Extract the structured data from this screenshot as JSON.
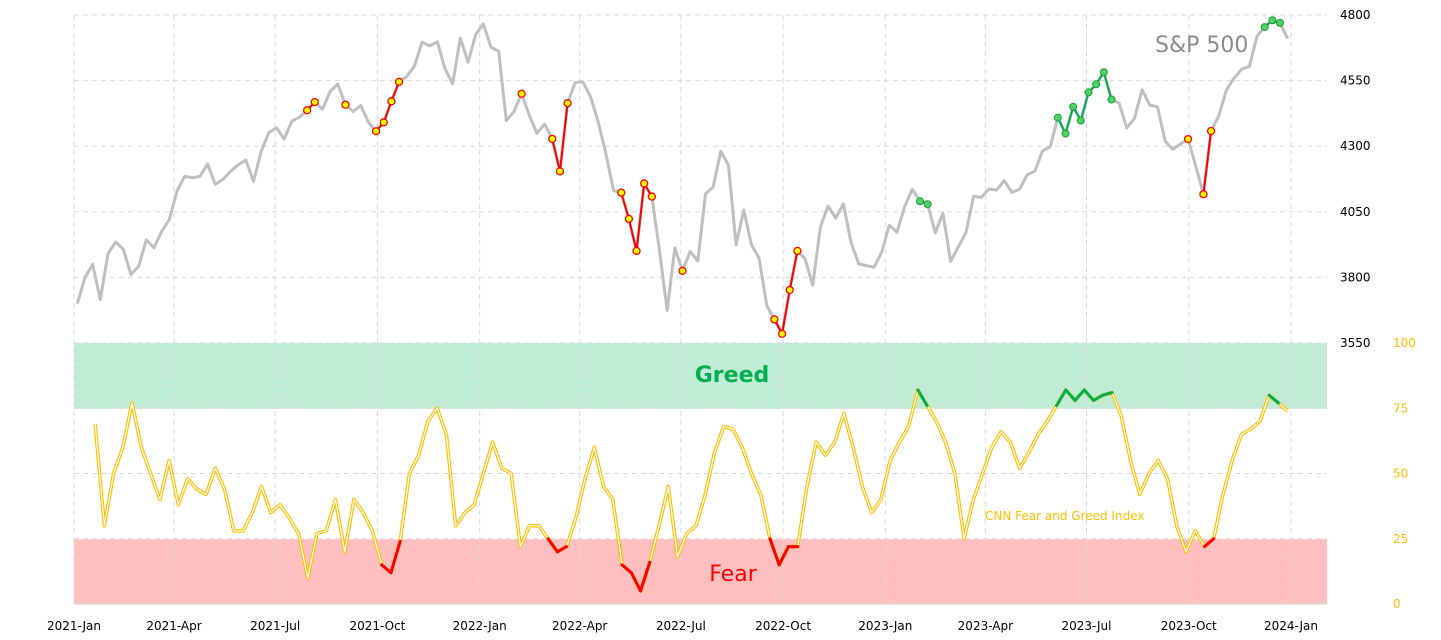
{
  "chart_data": {
    "type": "line",
    "title": "S&P 500",
    "index_label": "CNN Fear and Greed Index",
    "zones": {
      "greed_label": "Greed",
      "fear_label": "Fear",
      "greed_threshold": 75,
      "fear_threshold": 25
    },
    "x_ticks": [
      "2021-Jan",
      "2021-Apr",
      "2021-Jul",
      "2021-Oct",
      "2022-Jan",
      "2022-Apr",
      "2022-Jul",
      "2022-Oct",
      "2023-Jan",
      "2023-Apr",
      "2023-Jul",
      "2023-Oct",
      "2024-Jan"
    ],
    "x_tick_dates": [
      "2021-01-01",
      "2021-04-01",
      "2021-07-01",
      "2021-10-01",
      "2022-01-01",
      "2022-04-01",
      "2022-07-01",
      "2022-10-01",
      "2023-01-01",
      "2023-04-01",
      "2023-07-01",
      "2023-10-01",
      "2024-01-01"
    ],
    "x_range": [
      "2021-01-01",
      "2024-01-01"
    ],
    "sp500": {
      "ylim": [
        3550,
        4800
      ],
      "y_ticks": [
        "4800",
        "4550",
        "4300",
        "4050",
        "3800",
        "3550"
      ],
      "start": "2021-01-04",
      "end": "2023-12-29",
      "values": [
        3700,
        3800,
        3850,
        3715,
        3890,
        3935,
        3907,
        3811,
        3842,
        3943,
        3913,
        3975,
        4020,
        4128,
        4185,
        4180,
        4185,
        4232,
        4155,
        4173,
        4204,
        4229,
        4247,
        4166,
        4280,
        4352,
        4370,
        4327,
        4395,
        4411,
        4437,
        4468,
        4441,
        4509,
        4537,
        4458,
        4432,
        4455,
        4391,
        4357,
        4391,
        4471,
        4545,
        4566,
        4605,
        4697,
        4682,
        4698,
        4595,
        4538,
        4712,
        4620,
        4725,
        4766,
        4677,
        4662,
        4398,
        4432,
        4500,
        4418,
        4349,
        4384,
        4328,
        4204,
        4464,
        4543,
        4545,
        4488,
        4392,
        4272,
        4131,
        4123,
        4023,
        3901,
        4158,
        4108,
        3901,
        3674,
        3912,
        3825,
        3899,
        3863,
        4118,
        4145,
        4280,
        4228,
        3924,
        4057,
        3924,
        3873,
        3693,
        3640,
        3585,
        3752,
        3901,
        3871,
        3770,
        3992,
        4072,
        4026,
        4080,
        3934,
        3852,
        3845,
        3839,
        3895,
        3999,
        3972,
        4070,
        4136,
        4090,
        4079,
        3970,
        4045,
        3861,
        3916,
        3971,
        4109,
        4105,
        4137,
        4133,
        4169,
        4124,
        4136,
        4191,
        4205,
        4282,
        4298,
        4409,
        4348,
        4450,
        4398,
        4505,
        4536,
        4582,
        4478,
        4464,
        4369,
        4406,
        4515,
        4457,
        4450,
        4320,
        4288,
        4308,
        4327,
        4224,
        4117,
        4358,
        4415,
        4514,
        4559,
        4594,
        4604,
        4719,
        4754,
        4780,
        4770,
        4710
      ]
    },
    "fear_greed": {
      "ylim": [
        0,
        100
      ],
      "y_ticks": [
        "100",
        "75",
        "50",
        "25",
        "0"
      ],
      "start": "2021-01-20",
      "end": "2023-12-29",
      "values": [
        69,
        30,
        50,
        60,
        77,
        60,
        50,
        40,
        55,
        38,
        48,
        44,
        42,
        52,
        44,
        28,
        28,
        35,
        45,
        35,
        38,
        33,
        27,
        10,
        27,
        28,
        40,
        20,
        40,
        35,
        28,
        15,
        12,
        24,
        50,
        57,
        70,
        75,
        65,
        30,
        35,
        38,
        50,
        62,
        52,
        50,
        22,
        30,
        30,
        25,
        20,
        22,
        33,
        48,
        60,
        45,
        40,
        15,
        12,
        5,
        16,
        30,
        45,
        18,
        27,
        30,
        42,
        58,
        68,
        67,
        60,
        50,
        42,
        25,
        15,
        22,
        22,
        45,
        62,
        57,
        62,
        73,
        60,
        45,
        35,
        40,
        55,
        62,
        68,
        82,
        76,
        70,
        62,
        50,
        25,
        40,
        50,
        60,
        66,
        62,
        52,
        58,
        65,
        70,
        76,
        82,
        78,
        82,
        78,
        80,
        81,
        72,
        55,
        42,
        50,
        55,
        48,
        30,
        20,
        28,
        22,
        25,
        42,
        55,
        65,
        67,
        70,
        80,
        77,
        74
      ]
    },
    "colors": {
      "sp_line": "#bfbfbf",
      "fg_line": "#ffc000",
      "greed": "#00b050",
      "greed_band": "#c0ebd5",
      "fear": "#ff0000",
      "fear_band": "#ffbfbf",
      "fear_marker_fill": "#ffff00",
      "grid": "#d9d9d9"
    },
    "grid": true
  }
}
